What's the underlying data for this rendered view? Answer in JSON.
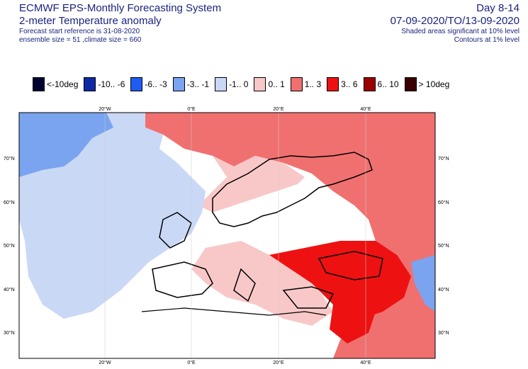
{
  "header": {
    "title": "ECMWF EPS-Monthly Forecasting System",
    "subtitle": "2-meter Temperature anomaly",
    "forecast_ref": "Forecast start reference is 31-08-2020",
    "ensemble": "ensemble size = 51  ,climate size = 660",
    "day_range": "Day 8-14",
    "date_range": "07-09-2020/TO/13-09-2020",
    "shaded_note": "Shaded areas significant at 10% level",
    "contour_note": "Contours at 1% level"
  },
  "legend": [
    {
      "label": "<-10deg",
      "color": "#000033"
    },
    {
      "label": "-10.. -6",
      "color": "#0d2aa6"
    },
    {
      "label": "-6.. -3",
      "color": "#1f5cf5"
    },
    {
      "label": "-3.. -1",
      "color": "#7aa4ef"
    },
    {
      "label": "-1.. 0",
      "color": "#c9d8f5"
    },
    {
      "label": "0.. 1",
      "color": "#f8c8c8"
    },
    {
      "label": "1.. 3",
      "color": "#f07070"
    },
    {
      "label": "3.. 6",
      "color": "#ee1111"
    },
    {
      "label": "6.. 10",
      "color": "#9a0000"
    },
    {
      "label": "> 10deg",
      "color": "#3a0000"
    }
  ],
  "axes": {
    "lon_labels": [
      "20°W",
      "0°E",
      "20°E",
      "40°E"
    ],
    "lat_labels": [
      "70°N",
      "60°N",
      "50°N",
      "40°N",
      "30°N"
    ]
  }
}
